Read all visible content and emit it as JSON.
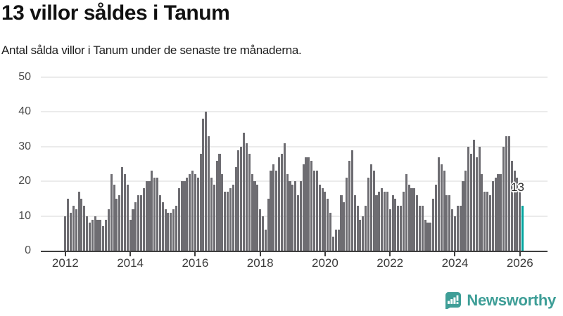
{
  "header": {
    "title": "13 villor såldes i Tanum",
    "subtitle": "Antal sålda villor i Tanum under de senaste tre månaderna."
  },
  "annotation": {
    "last_value_label": "13"
  },
  "footer": {
    "brand": "Newsworthy"
  },
  "colors": {
    "bar": "#6e6d72",
    "highlight": "#00a49e",
    "gridline": "#ebebeb",
    "axis": "#3f3f3f",
    "brand_teal": "#3e9e97"
  },
  "chart_data": {
    "type": "bar",
    "title": "13 villor såldes i Tanum",
    "subtitle": "Antal sålda villor i Tanum under de senaste tre månaderna.",
    "x_start": "2012-01",
    "x_frequency": "monthly",
    "x_tick_labels": [
      "2012",
      "2014",
      "2016",
      "2018",
      "2020",
      "2022",
      "2024",
      "2026"
    ],
    "yticks": [
      0,
      10,
      20,
      30,
      40,
      50
    ],
    "ylim": [
      0,
      50
    ],
    "grid": true,
    "highlight_last": true,
    "last_point_label": "13",
    "values": [
      10,
      15,
      11,
      13,
      12,
      17,
      15,
      13,
      10,
      8,
      9,
      10,
      9,
      9,
      7,
      9,
      12,
      22,
      19,
      15,
      16,
      24,
      22,
      19,
      9,
      12,
      14,
      16,
      16,
      18,
      20,
      20,
      23,
      21,
      21,
      16,
      14,
      12,
      11,
      11,
      12,
      13,
      18,
      20,
      20,
      21,
      22,
      23,
      22,
      21,
      28,
      38,
      40,
      33,
      21,
      19,
      26,
      28,
      22,
      17,
      17,
      18,
      19,
      24,
      29,
      30,
      34,
      31,
      28,
      22,
      20,
      19,
      12,
      10,
      6,
      15,
      23,
      25,
      23,
      27,
      28,
      31,
      22,
      20,
      19,
      20,
      16,
      20,
      25,
      27,
      27,
      26,
      23,
      23,
      19,
      18,
      17,
      15,
      11,
      4,
      6,
      6,
      16,
      14,
      21,
      26,
      29,
      16,
      13,
      9,
      10,
      13,
      21,
      25,
      23,
      16,
      17,
      18,
      17,
      17,
      12,
      16,
      15,
      13,
      13,
      17,
      22,
      19,
      18,
      18,
      16,
      13,
      13,
      9,
      8,
      8,
      15,
      19,
      27,
      25,
      23,
      16,
      16,
      12,
      10,
      13,
      13,
      20,
      23,
      30,
      28,
      32,
      27,
      30,
      22,
      17,
      17,
      16,
      20,
      21,
      22,
      22,
      30,
      33,
      33,
      26,
      23,
      21,
      17,
      13
    ]
  }
}
